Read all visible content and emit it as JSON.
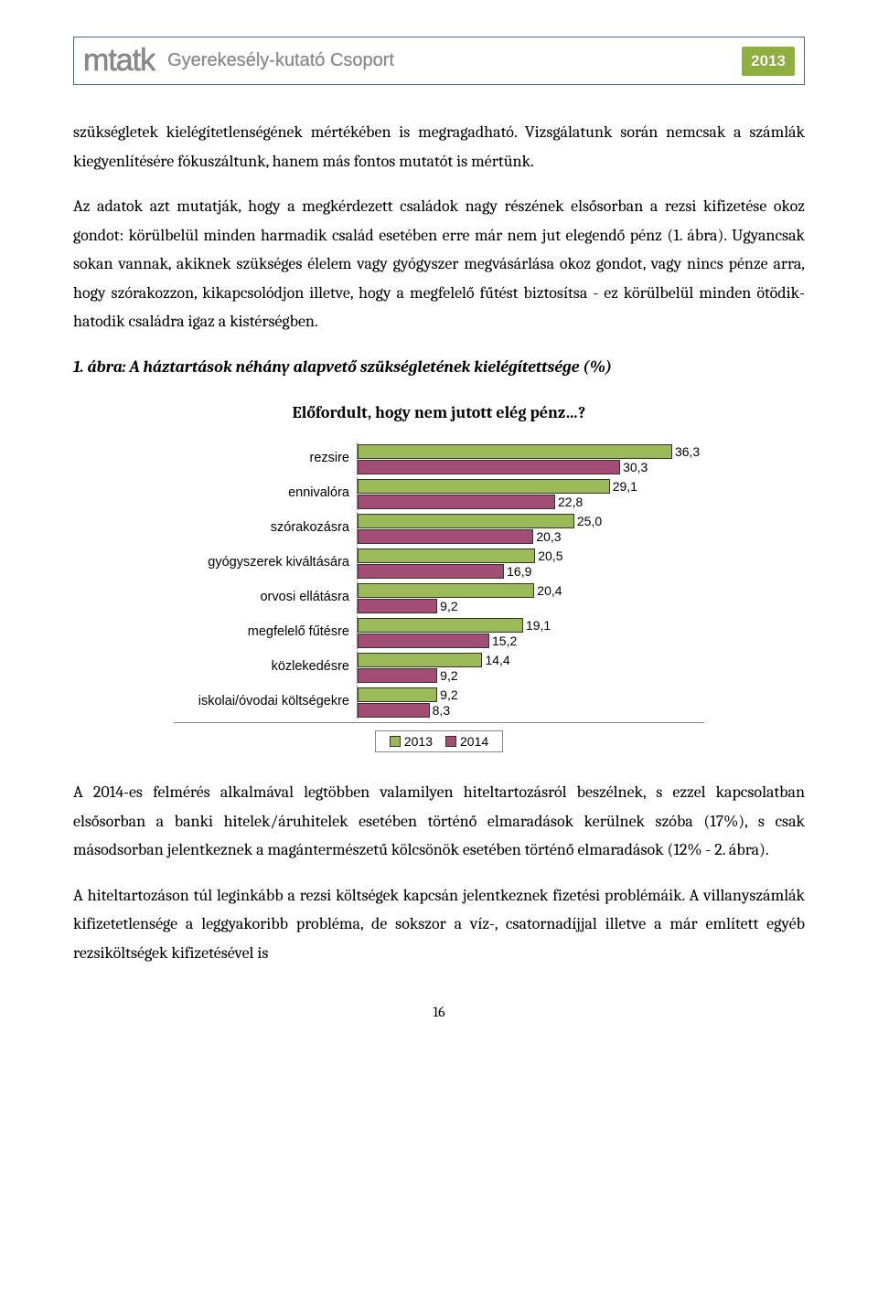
{
  "header": {
    "logo": "mtatk",
    "subtitle": "Gyerekesély-kutató Csoport",
    "year": "2013"
  },
  "paragraphs": {
    "p1": "szükségletek kielégítetlenségének mértékében is megragadható. Vizsgálatunk során nemcsak a számlák kiegyenlítésére fókuszáltunk, hanem más fontos mutatót is mértünk.",
    "p2": "Az adatok azt mutatják, hogy a megkérdezett családok nagy részének elsősorban a rezsi kifizetése okoz gondot: körülbelül minden harmadik család esetében erre már nem jut elegendő pénz (1. ábra). Ugyancsak sokan vannak, akiknek szükséges élelem vagy gyógyszer megvásárlása okoz gondot, vagy nincs pénze arra, hogy szórakozzon, kikapcsolódjon illetve, hogy a megfelelő fűtést biztosítsa - ez körülbelül minden ötödik-hatodik családra igaz a kistérségben.",
    "caption": "1. ábra: A háztartások néhány alapvető szükségletének kielégítettsége (%)",
    "p3": "A 2014-es felmérés alkalmával legtöbben valamilyen hiteltartozásról beszélnek, s ezzel kapcsolatban elsősorban a banki hitelek/áruhitelek esetében történő elmaradások kerülnek szóba (17%), s csak másodsorban jelentkeznek a magántermészetű kölcsönök esetében történő elmaradások (12% - 2. ábra).",
    "p4": "A hiteltartozáson túl leginkább a rezsi költségek kapcsán jelentkeznek fizetési problémáik. A villanyszámlák kifizetetlensége a leggyakoribb probléma, de sokszor a víz-, csatornadíjjal illetve a már említett egyéb rezsiköltségek kifizetésével is"
  },
  "chart": {
    "type": "grouped-horizontal-bar",
    "title": "Előfordult, hogy nem jutott elég pénz…?",
    "xlim": 40,
    "colors": {
      "series2013": "#9bbb59",
      "series2014": "#a24d74",
      "border": "#333333"
    },
    "series_labels": {
      "s2013": "2013",
      "s2014": "2014"
    },
    "categories": [
      {
        "label": "rezsire",
        "v2013": 36.3,
        "v2014": 30.3
      },
      {
        "label": "ennivalóra",
        "v2013": 29.1,
        "v2014": 22.8
      },
      {
        "label": "szórakozásra",
        "v2013": 25.0,
        "v2014": 20.3
      },
      {
        "label": "gyógyszerek kiváltására",
        "v2013": 20.5,
        "v2014": 16.9
      },
      {
        "label": "orvosi ellátásra",
        "v2013": 20.4,
        "v2014": 9.2
      },
      {
        "label": "megfelelő fűtésre",
        "v2013": 19.1,
        "v2014": 15.2
      },
      {
        "label": "közlekedésre",
        "v2013": 14.4,
        "v2014": 9.2
      },
      {
        "label": "iskolai/óvodai költségekre",
        "v2013": 9.2,
        "v2014": 8.3
      }
    ],
    "legend_order": [
      "2013",
      "2014"
    ]
  },
  "page_number": "16"
}
